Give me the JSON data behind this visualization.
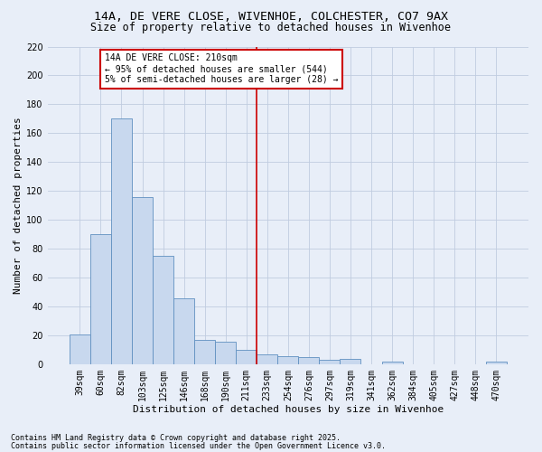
{
  "title1": "14A, DE VERE CLOSE, WIVENHOE, COLCHESTER, CO7 9AX",
  "title2": "Size of property relative to detached houses in Wivenhoe",
  "xlabel": "Distribution of detached houses by size in Wivenhoe",
  "ylabel": "Number of detached properties",
  "categories": [
    "39sqm",
    "60sqm",
    "82sqm",
    "103sqm",
    "125sqm",
    "146sqm",
    "168sqm",
    "190sqm",
    "211sqm",
    "233sqm",
    "254sqm",
    "276sqm",
    "297sqm",
    "319sqm",
    "341sqm",
    "362sqm",
    "384sqm",
    "405sqm",
    "427sqm",
    "448sqm",
    "470sqm"
  ],
  "values": [
    21,
    90,
    170,
    116,
    75,
    46,
    17,
    16,
    10,
    7,
    6,
    5,
    3,
    4,
    0,
    2,
    0,
    0,
    0,
    0,
    2
  ],
  "bar_color": "#c8d8ee",
  "bar_edge_color": "#6090c0",
  "vline_index": 8,
  "vline_color": "#cc0000",
  "annotation_text": "14A DE VERE CLOSE: 210sqm\n← 95% of detached houses are smaller (544)\n5% of semi-detached houses are larger (28) →",
  "annotation_box_color": "#ffffff",
  "annotation_box_edge": "#cc0000",
  "footnote1": "Contains HM Land Registry data © Crown copyright and database right 2025.",
  "footnote2": "Contains public sector information licensed under the Open Government Licence v3.0.",
  "background_color": "#e8eef8",
  "grid_color": "#c0cce0",
  "ylim": [
    0,
    220
  ],
  "yticks": [
    0,
    20,
    40,
    60,
    80,
    100,
    120,
    140,
    160,
    180,
    200,
    220
  ],
  "title_fontsize": 9.5,
  "subtitle_fontsize": 8.5,
  "xlabel_fontsize": 8,
  "ylabel_fontsize": 8,
  "tick_fontsize": 7,
  "annot_fontsize": 7,
  "footnote_fontsize": 6
}
